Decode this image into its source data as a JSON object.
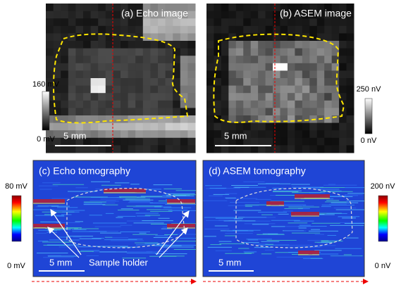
{
  "panels": [
    {
      "label": "(a) Echo image",
      "scale_bar": "5 mm"
    },
    {
      "label": "(b) ASEM image",
      "scale_bar": "5 mm"
    },
    {
      "label": "(c) Echo tomography",
      "scale_bar": "5 mm"
    },
    {
      "label": "(d) ASEM tomography",
      "scale_bar": "5 mm"
    }
  ],
  "colorbars": [
    {
      "max": "160 mV",
      "min": "0 mV"
    },
    {
      "max": "250 nV",
      "min": "0 nV"
    },
    {
      "max": "80 mV",
      "min": "0 mV"
    },
    {
      "max": "200 nV",
      "min": "0 nV"
    }
  ],
  "annotation": "Sample holder"
}
